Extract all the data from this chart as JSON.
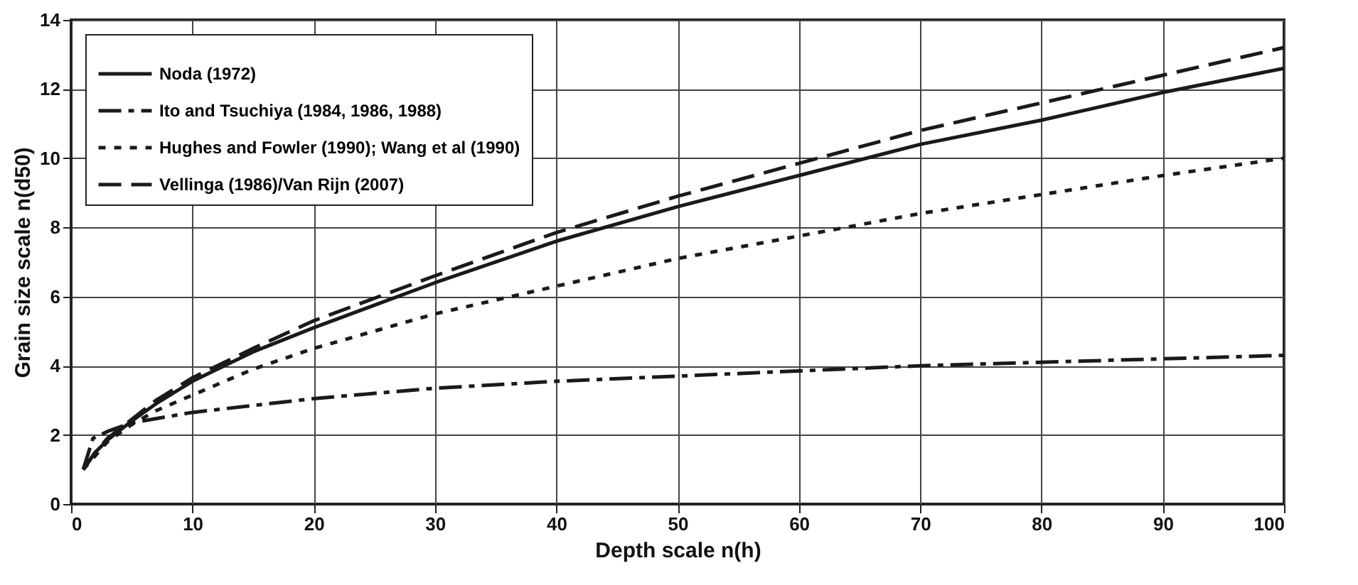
{
  "chart_data": {
    "type": "line",
    "xlabel": "Depth scale n(h)",
    "ylabel": "Grain size scale n(d50)",
    "xlim": [
      0,
      100
    ],
    "xticks": [
      0,
      10,
      20,
      30,
      40,
      50,
      60,
      70,
      80,
      90,
      100
    ],
    "ylim": [
      0,
      14
    ],
    "yticks": [
      0,
      2,
      4,
      6,
      8,
      10,
      12,
      14
    ],
    "grid": true,
    "legend": "top left",
    "marker": "none",
    "series": [
      {
        "name": "Noda (1972)",
        "color": "#1a1a1a",
        "line_style": "solid",
        "x": [
          1,
          2,
          3,
          5,
          7,
          10,
          15,
          20,
          30,
          40,
          50,
          60,
          70,
          80,
          90,
          100
        ],
        "values": [
          1.0,
          1.5,
          1.85,
          2.4,
          2.9,
          3.55,
          4.4,
          5.1,
          6.4,
          7.6,
          8.6,
          9.5,
          10.4,
          11.1,
          11.9,
          12.6
        ]
      },
      {
        "name": "Ito and Tsuchiya (1984, 1986, 1988)",
        "color": "#1a1a1a",
        "line_style": "dashdot",
        "x": [
          1,
          1.8,
          3,
          5,
          10,
          20,
          30,
          40,
          50,
          60,
          70,
          80,
          90,
          100
        ],
        "values": [
          1.0,
          1.9,
          2.1,
          2.35,
          2.65,
          3.05,
          3.35,
          3.55,
          3.7,
          3.85,
          4.0,
          4.1,
          4.2,
          4.3
        ]
      },
      {
        "name": "Hughes and Fowler (1990); Wang et al (1990)",
        "color": "#1a1a1a",
        "line_style": "dotted",
        "x": [
          1,
          3,
          5,
          7,
          10,
          15,
          20,
          30,
          40,
          50,
          60,
          70,
          80,
          90,
          100
        ],
        "values": [
          1.0,
          1.8,
          2.3,
          2.7,
          3.15,
          3.9,
          4.5,
          5.5,
          6.3,
          7.1,
          7.75,
          8.4,
          8.95,
          9.5,
          10.0
        ]
      },
      {
        "name": "Vellinga (1986)/Van Rijn (2007)",
        "color": "#1a1a1a",
        "line_style": "dashed",
        "x": [
          1,
          2,
          3,
          5,
          7,
          10,
          15,
          20,
          30,
          40,
          50,
          60,
          70,
          80,
          90,
          100
        ],
        "values": [
          1.0,
          1.5,
          1.9,
          2.45,
          3.0,
          3.65,
          4.5,
          5.3,
          6.6,
          7.85,
          8.9,
          9.85,
          10.8,
          11.6,
          12.4,
          13.2
        ]
      }
    ]
  }
}
